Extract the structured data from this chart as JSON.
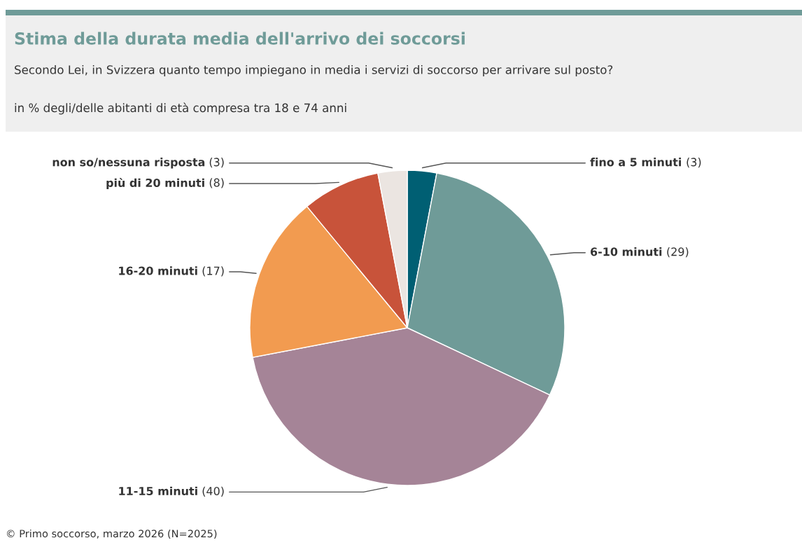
{
  "chart_data": {
    "type": "pie",
    "title": "Stima della durata media dell'arrivo dei soccorsi",
    "subtitle": "Secondo Lei, in Svizzera quanto tempo impiegano in media i servizi di soccorso per arrivare sul posto?",
    "categories": [
      "fino a 5 minuti",
      "6-10 minuti",
      "11-15 minuti",
      "16-20 minuti",
      "più di 20 minuti",
      "non so/nessuna risposta"
    ],
    "values": [
      3,
      29,
      40,
      17,
      8,
      3
    ],
    "colors": [
      "#005f73",
      "#6f9b98",
      "#a58497",
      "#f29b50",
      "#c8533a",
      "#ebe5e1"
    ],
    "value_labels": [
      "(3)",
      "(29)",
      "(40)",
      "(17)",
      "(8)",
      "(3)"
    ],
    "annotations": [
      "in % degli/delle abitanti di età compresa tra 18 e 74 anni",
      "© Primo soccorso, marzo 2026 (N=2025)"
    ]
  }
}
